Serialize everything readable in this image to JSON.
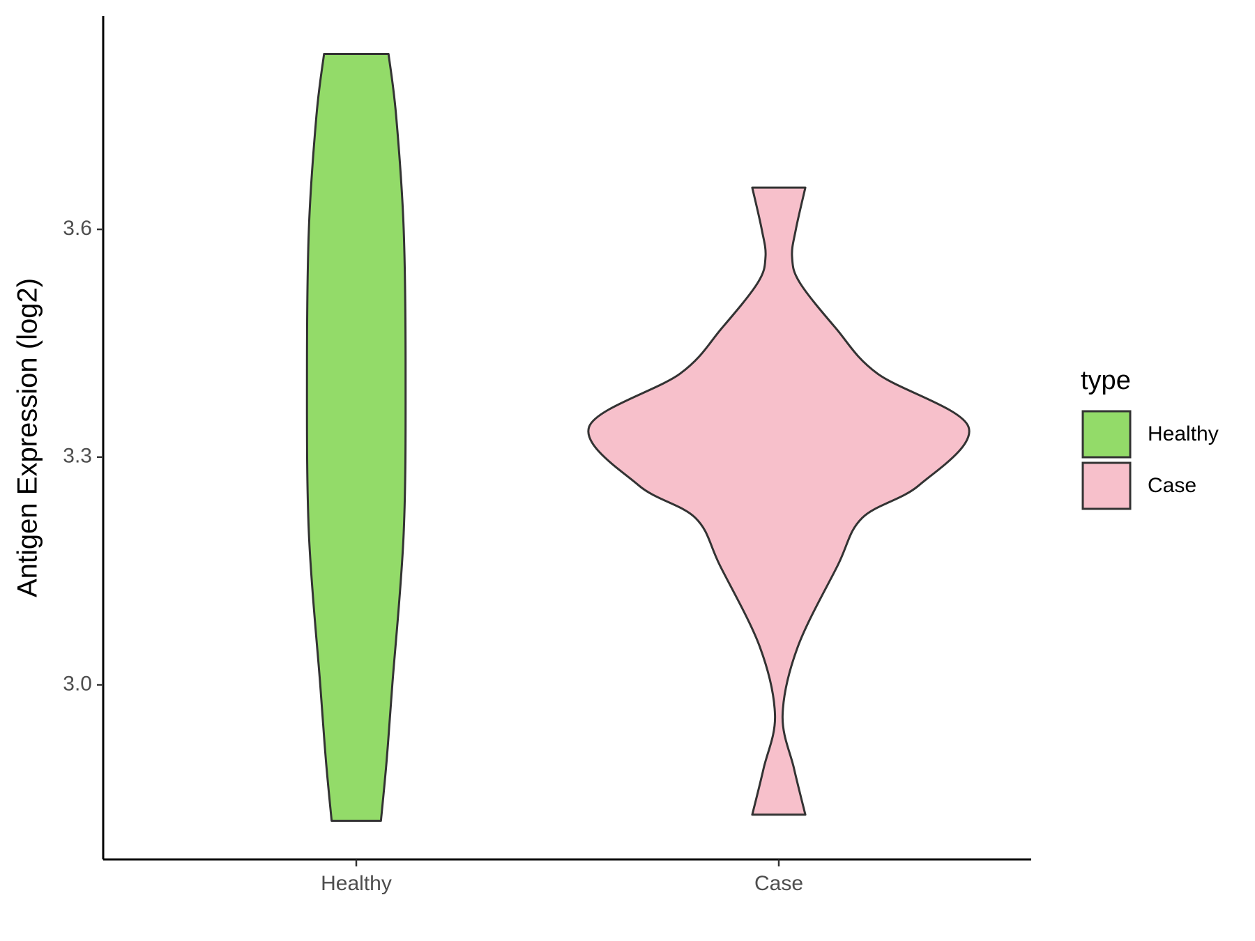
{
  "chart_data": {
    "type": "violin",
    "y_label": "Antigen Expression (log2)",
    "categories": [
      "Healthy",
      "Case"
    ],
    "legend_title": "type",
    "legend": "right",
    "ylim": [
      2.77,
      3.881
    ],
    "yticks": [
      {
        "value": 3,
        "label": "3.0"
      },
      3.3,
      3.6
    ],
    "series": [
      {
        "name": "Healthy",
        "color": "#93db69",
        "y": [
          3.831,
          3.75,
          3.6,
          3.41,
          3.2,
          3.0,
          2.9,
          2.821
        ],
        "density": [
          0.17,
          0.21,
          0.25,
          0.26,
          0.25,
          0.19,
          0.16,
          0.13
        ]
      },
      {
        "name": "Case",
        "color": "#f7c0cb",
        "y": [
          3.655,
          3.6,
          3.564,
          3.53,
          3.47,
          3.41,
          3.34,
          3.263,
          3.22,
          3.157,
          3.05,
          2.96,
          2.89,
          2.829
        ],
        "density": [
          0.14,
          0.09,
          0.07,
          0.11,
          0.3,
          0.52,
          1.0,
          0.74,
          0.44,
          0.31,
          0.1,
          0.02,
          0.08,
          0.14
        ]
      }
    ]
  }
}
